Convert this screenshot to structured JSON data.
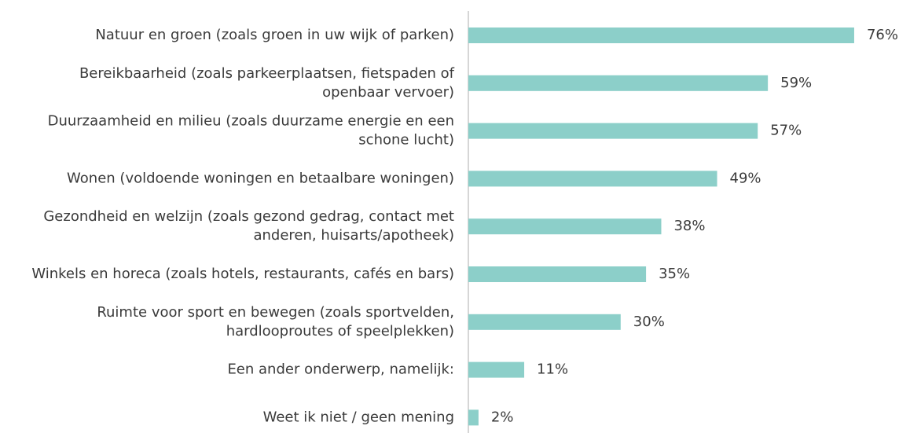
{
  "chart_data": {
    "type": "bar",
    "orientation": "horizontal",
    "color": "#8ccfc9",
    "categories": [
      [
        "Natuur en groen (zoals groen in uw wijk of parken)"
      ],
      [
        "Bereikbaarheid (zoals parkeerplaatsen, fietspaden of",
        "openbaar vervoer)"
      ],
      [
        "Duurzaamheid en milieu (zoals duurzame energie en een",
        "schone lucht)"
      ],
      [
        "Wonen (voldoende woningen en betaalbare woningen)"
      ],
      [
        "Gezondheid en welzijn (zoals gezond gedrag, contact met",
        "anderen, huisarts/apotheek)"
      ],
      [
        "Winkels en horeca (zoals hotels, restaurants, cafés en bars)"
      ],
      [
        "Ruimte voor sport en bewegen (zoals sportvelden,",
        "hardlooproutes of speelplekken)"
      ],
      [
        "Een ander onderwerp, namelijk:"
      ],
      [
        "Weet ik niet / geen mening"
      ]
    ],
    "values": [
      76,
      59,
      57,
      49,
      38,
      35,
      30,
      11,
      2
    ],
    "value_labels": [
      "76%",
      "59%",
      "57%",
      "49%",
      "38%",
      "35%",
      "30%",
      "11%",
      "2%"
    ]
  }
}
